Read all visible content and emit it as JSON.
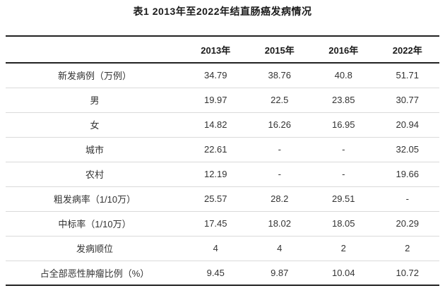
{
  "chart_data": {
    "type": "table",
    "title": "表1 2013年至2022年结直肠癌发病情况",
    "columns": [
      "",
      "2013年",
      "2015年",
      "2016年",
      "2022年"
    ],
    "rows": [
      {
        "label": "新发病例（万例）",
        "values": [
          "34.79",
          "38.76",
          "40.8",
          "51.71"
        ]
      },
      {
        "label": "男",
        "values": [
          "19.97",
          "22.5",
          "23.85",
          "30.77"
        ]
      },
      {
        "label": "女",
        "values": [
          "14.82",
          "16.26",
          "16.95",
          "20.94"
        ]
      },
      {
        "label": "城市",
        "values": [
          "22.61",
          "-",
          "-",
          "32.05"
        ]
      },
      {
        "label": "农村",
        "values": [
          "12.19",
          "-",
          "-",
          "19.66"
        ]
      },
      {
        "label": "粗发病率（1/10万）",
        "values": [
          "25.57",
          "28.2",
          "29.51",
          "-"
        ]
      },
      {
        "label": "中标率（1/10万）",
        "values": [
          "17.45",
          "18.02",
          "18.05",
          "20.29"
        ]
      },
      {
        "label": "发病顺位",
        "values": [
          "4",
          "4",
          "2",
          "2"
        ]
      },
      {
        "label": "占全部恶性肿瘤比例（%）",
        "values": [
          "9.45",
          "9.87",
          "10.04",
          "10.72"
        ]
      }
    ],
    "colors": {
      "heavy_rule": "#222222",
      "light_rule": "#dadada",
      "text": "#333333",
      "title_text": "#1a1a1a",
      "background": "#ffffff"
    },
    "layout": {
      "style": "three-line academic table",
      "grid": "horizontal rules only"
    }
  }
}
